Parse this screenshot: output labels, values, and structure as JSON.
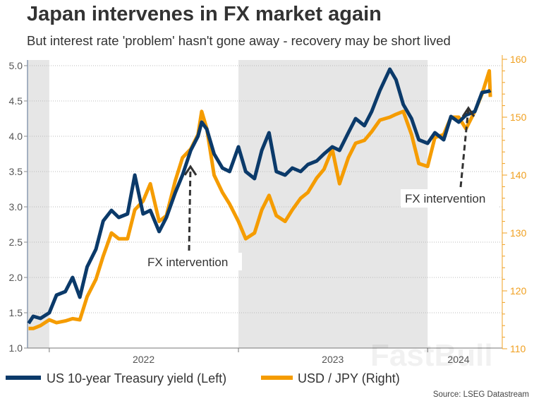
{
  "title": "Japan intervenes in FX market again",
  "subtitle": "But interest rate 'problem' hasn't gone away - recovery may be short lived",
  "source": "Source: LSEG Datastream",
  "watermark": "FastBull",
  "colors": {
    "yield": "#0b3a6a",
    "usdjpy": "#f59c00",
    "shade": "#e6e6e6",
    "annotation": "#333333"
  },
  "chart_data": {
    "type": "line",
    "x_tick_labels": [
      "2022",
      "2023",
      "2024"
    ],
    "x_range": [
      "2021-11-20",
      "2024-05-24"
    ],
    "shaded_periods": [
      [
        "2021-11-20",
        "2022-01-01"
      ],
      [
        "2023-01-01",
        "2024-01-01"
      ]
    ],
    "left_axis": {
      "ylim": [
        1.0,
        5.0
      ],
      "ticks": [
        "1.0",
        "1.5",
        "2.0",
        "2.5",
        "3.0",
        "3.5",
        "4.0",
        "4.5",
        "5.0"
      ]
    },
    "right_axis": {
      "ylim": [
        110,
        160
      ],
      "ticks": [
        "110",
        "120",
        "130",
        "140",
        "150",
        "160"
      ]
    },
    "grid": "horizontal dotted",
    "legend_position": "bottom",
    "dates": [
      "2021-11-22",
      "2021-12-01",
      "2021-12-15",
      "2022-01-01",
      "2022-01-15",
      "2022-02-01",
      "2022-02-15",
      "2022-03-01",
      "2022-03-15",
      "2022-04-01",
      "2022-04-15",
      "2022-05-01",
      "2022-05-15",
      "2022-06-01",
      "2022-06-15",
      "2022-07-01",
      "2022-07-15",
      "2022-08-01",
      "2022-08-15",
      "2022-09-01",
      "2022-09-15",
      "2022-10-01",
      "2022-10-15",
      "2022-10-22",
      "2022-11-01",
      "2022-11-15",
      "2022-12-01",
      "2022-12-15",
      "2023-01-01",
      "2023-01-15",
      "2023-02-01",
      "2023-02-15",
      "2023-03-01",
      "2023-03-15",
      "2023-04-01",
      "2023-04-15",
      "2023-05-01",
      "2023-05-15",
      "2023-06-01",
      "2023-06-15",
      "2023-07-01",
      "2023-07-15",
      "2023-08-01",
      "2023-08-15",
      "2023-09-01",
      "2023-09-15",
      "2023-10-01",
      "2023-10-20",
      "2023-11-01",
      "2023-11-15",
      "2023-12-01",
      "2023-12-15",
      "2024-01-01",
      "2024-01-15",
      "2024-02-01",
      "2024-02-15",
      "2024-03-01",
      "2024-03-15",
      "2024-04-01",
      "2024-04-15",
      "2024-04-29",
      "2024-05-01"
    ],
    "series": [
      {
        "name": "US 10-year Treasury yield (Left)",
        "axis": "left",
        "values": [
          1.35,
          1.45,
          1.42,
          1.5,
          1.75,
          1.8,
          2.0,
          1.72,
          2.15,
          2.4,
          2.8,
          2.95,
          2.85,
          2.9,
          3.45,
          2.9,
          2.95,
          2.65,
          2.85,
          3.2,
          3.45,
          3.8,
          4.0,
          4.2,
          4.1,
          3.75,
          3.55,
          3.5,
          3.85,
          3.5,
          3.4,
          3.8,
          4.05,
          3.5,
          3.45,
          3.55,
          3.5,
          3.6,
          3.65,
          3.75,
          3.85,
          3.8,
          4.05,
          4.25,
          4.15,
          4.35,
          4.65,
          4.95,
          4.8,
          4.45,
          4.25,
          3.95,
          3.9,
          4.05,
          3.95,
          4.28,
          4.2,
          4.3,
          4.35,
          4.62,
          4.64,
          4.65
        ]
      },
      {
        "name": "USD / JPY (Right)",
        "axis": "right",
        "values": [
          113.5,
          113.5,
          114,
          115,
          114.5,
          114.8,
          115.2,
          115,
          119,
          122,
          126,
          130,
          129,
          129,
          134,
          135.5,
          138.5,
          132,
          133,
          139,
          143,
          144.5,
          147,
          151,
          148,
          140,
          137,
          135,
          132,
          129,
          130,
          134,
          136.5,
          133,
          132,
          134,
          136,
          137,
          139.5,
          141,
          144.5,
          138.5,
          143,
          145.5,
          146,
          147.5,
          149.5,
          150,
          150.5,
          151,
          147,
          142,
          141.5,
          146.5,
          147,
          150,
          150,
          148,
          151,
          154,
          158,
          153.5
        ]
      }
    ],
    "annotations": [
      {
        "text": "FX intervention",
        "date": "2022-10-21"
      },
      {
        "text": "FX intervention",
        "date": "2024-04-29"
      }
    ]
  }
}
